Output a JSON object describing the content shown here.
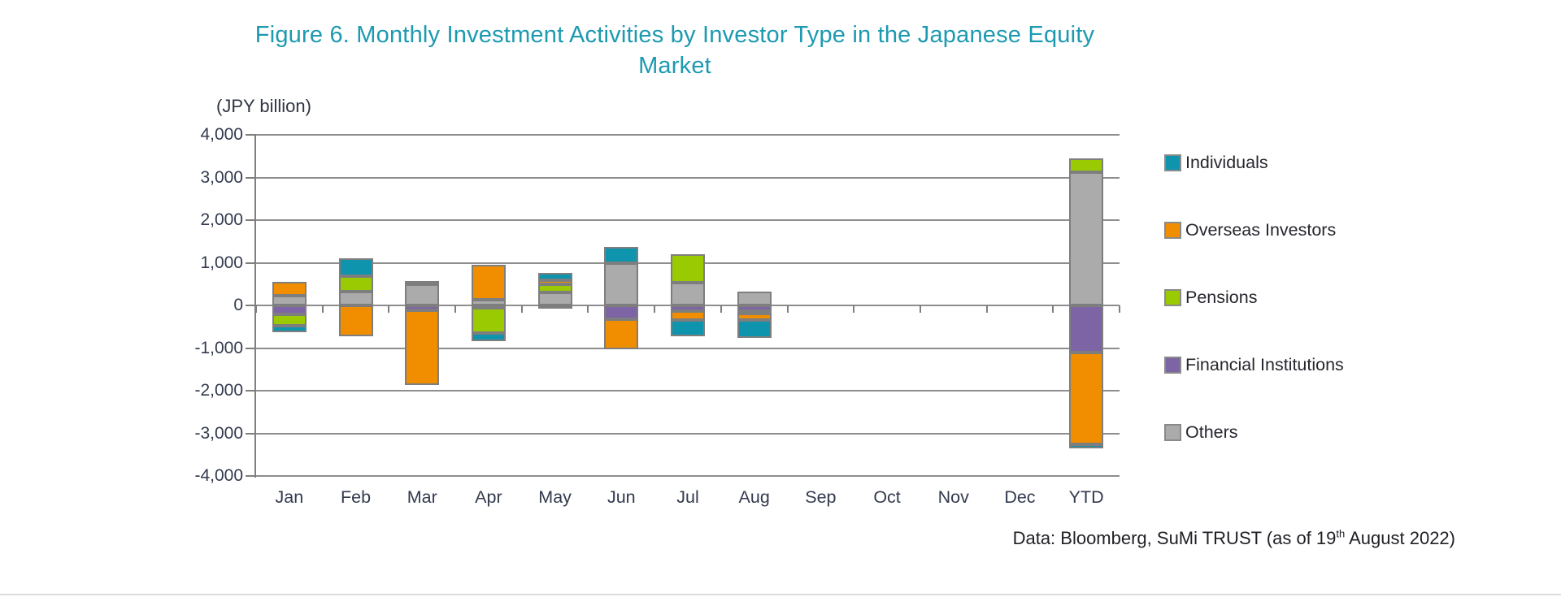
{
  "chart_data": {
    "type": "bar",
    "stacked": true,
    "title": "Figure 6. Monthly Investment Activities by Investor Type in the Japanese Equity Market",
    "title_lines": [
      "Figure 6. Monthly Investment Activities by Investor Type in the Japanese Equity",
      "Market"
    ],
    "title_color": "#1C9AB0",
    "ylabel": "(JPY billion)",
    "ylim": [
      -4000,
      4000
    ],
    "ytick_interval": 1000,
    "ytick_labels": [
      "4,000",
      "3,000",
      "2,000",
      "1,000",
      "0",
      "-1,000",
      "-2,000",
      "-3,000",
      "-4,000"
    ],
    "grid": true,
    "legend_position": "right",
    "categories": [
      "Jan",
      "Feb",
      "Mar",
      "Apr",
      "May",
      "Jun",
      "Jul",
      "Aug",
      "Sep",
      "Oct",
      "Nov",
      "Dec",
      "YTD"
    ],
    "series": [
      {
        "name": "Individuals",
        "color": "#0E94AD",
        "values": [
          -160,
          410,
          0,
          -180,
          180,
          390,
          -380,
          -420,
          0,
          0,
          0,
          0,
          -100
        ]
      },
      {
        "name": "Overseas Investors",
        "color": "#F18E00",
        "values": [
          320,
          -730,
          -1750,
          820,
          90,
          -690,
          -220,
          -150,
          0,
          0,
          0,
          0,
          -2150
        ]
      },
      {
        "name": "Pensions",
        "color": "#9ACA02",
        "values": [
          -260,
          360,
          80,
          -600,
          190,
          0,
          660,
          -60,
          0,
          0,
          0,
          0,
          330
        ]
      },
      {
        "name": "Financial Institutions",
        "color": "#7D64A5",
        "values": [
          -210,
          0,
          -110,
          -50,
          -80,
          -330,
          -130,
          -130,
          0,
          0,
          0,
          0,
          -1100
        ]
      },
      {
        "name": "Others",
        "color": "#ABABAB",
        "values": [
          230,
          330,
          490,
          130,
          310,
          990,
          540,
          330,
          0,
          0,
          0,
          0,
          3120
        ]
      }
    ],
    "stack_order_from_axis": [
      "Others",
      "Financial Institutions",
      "Pensions",
      "Overseas Investors",
      "Individuals"
    ]
  },
  "footer": {
    "text_before_sup": "Data: Bloomberg, SuMi TRUST (as of 19",
    "sup": "th",
    "text_after_sup": " August 2022)"
  }
}
